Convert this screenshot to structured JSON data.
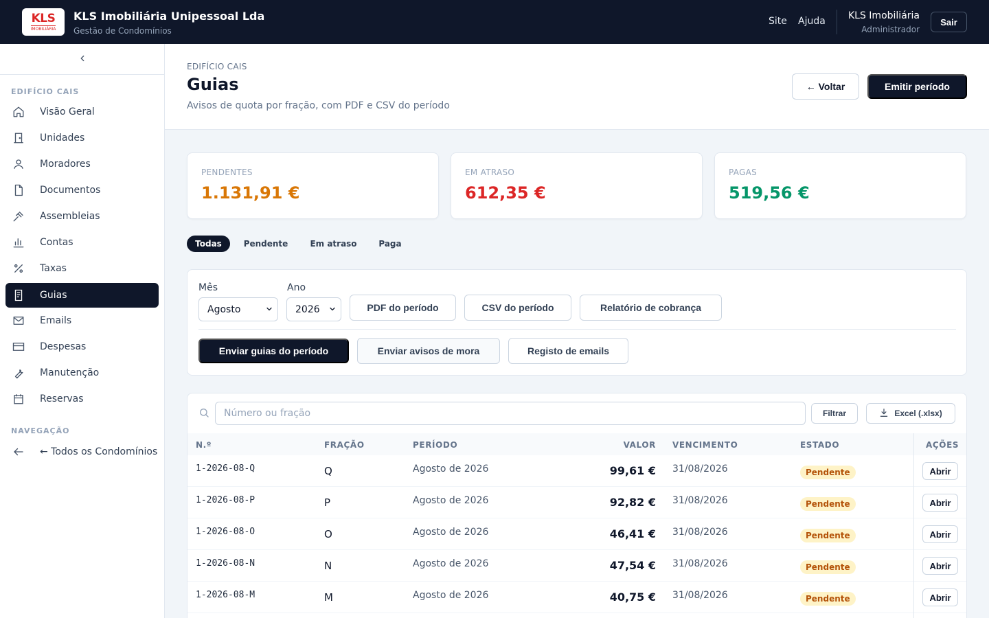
{
  "topbar": {
    "logo_text": "KLS",
    "logo_sub": "IMOBILIÁRIA",
    "company": "KLS Imobiliária Unipessoal Lda",
    "product": "Gestão de Condomínios",
    "nav": {
      "site": "Site",
      "help": "Ajuda"
    },
    "user_name": "KLS Imobiliária",
    "user_role": "Administrador",
    "logout": "Sair"
  },
  "sidebar": {
    "section_building": "EDIFÍCIO CAIS",
    "items": [
      {
        "label": "Visão Geral",
        "icon": "home-icon"
      },
      {
        "label": "Unidades",
        "icon": "door-icon"
      },
      {
        "label": "Moradores",
        "icon": "user-icon"
      },
      {
        "label": "Documentos",
        "icon": "document-icon"
      },
      {
        "label": "Assembleias",
        "icon": "gavel-icon"
      },
      {
        "label": "Contas",
        "icon": "bar-chart-icon"
      },
      {
        "label": "Taxas",
        "icon": "percent-icon"
      },
      {
        "label": "Guias",
        "icon": "receipt-icon",
        "active": true
      },
      {
        "label": "Emails",
        "icon": "mail-icon"
      },
      {
        "label": "Despesas",
        "icon": "credit-card-icon"
      },
      {
        "label": "Manutenção",
        "icon": "wrench-icon"
      },
      {
        "label": "Reservas",
        "icon": "calendar-icon"
      }
    ],
    "section_nav": "NAVEGAÇÃO",
    "back_all": "← Todos os Condomínios"
  },
  "header": {
    "breadcrumb": "EDIFÍCIO CAIS",
    "title": "Guias",
    "subtitle": "Avisos de quota por fração, com PDF e CSV do período",
    "back_button": "← Voltar",
    "emit_button": "Emitir período"
  },
  "summary": {
    "pending_label": "PENDENTES",
    "pending_value": "1.131,91 €",
    "overdue_label": "EM ATRASO",
    "overdue_value": "612,35 €",
    "paid_label": "PAGAS",
    "paid_value": "519,56 €",
    "colors": {
      "pending": "#d97706",
      "overdue": "#dc2626",
      "paid": "#059669"
    }
  },
  "tabs": [
    "Todas",
    "Pendente",
    "Em atraso",
    "Paga"
  ],
  "filters": {
    "month_label": "Mês",
    "month_value": "Agosto",
    "year_label": "Ano",
    "year_value": "2026",
    "pdf_button": "PDF do período",
    "csv_button": "CSV do período",
    "report_button": "Relatório de cobrança",
    "send_button": "Enviar guias do período",
    "late_notice_button": "Enviar avisos de mora",
    "email_log_button": "Registo de emails"
  },
  "table": {
    "search_placeholder": "Número ou fração",
    "filter_button": "Filtrar",
    "excel_button": "Excel (.xlsx)",
    "headers": [
      "N.º",
      "FRAÇÃO",
      "PERÍODO",
      "VALOR",
      "VENCIMENTO",
      "ESTADO",
      "AÇÕES"
    ],
    "rows": [
      {
        "num": "1-2026-08-Q",
        "frac": "Q",
        "per": "Agosto de 2026",
        "valor": "99,61 €",
        "venc": "31/08/2026",
        "estado": "Pendente",
        "action": "Abrir"
      },
      {
        "num": "1-2026-08-P",
        "frac": "P",
        "per": "Agosto de 2026",
        "valor": "92,82 €",
        "venc": "31/08/2026",
        "estado": "Pendente",
        "action": "Abrir"
      },
      {
        "num": "1-2026-08-O",
        "frac": "O",
        "per": "Agosto de 2026",
        "valor": "46,41 €",
        "venc": "31/08/2026",
        "estado": "Pendente",
        "action": "Abrir"
      },
      {
        "num": "1-2026-08-N",
        "frac": "N",
        "per": "Agosto de 2026",
        "valor": "47,54 €",
        "venc": "31/08/2026",
        "estado": "Pendente",
        "action": "Abrir"
      },
      {
        "num": "1-2026-08-M",
        "frac": "M",
        "per": "Agosto de 2026",
        "valor": "40,75 €",
        "venc": "31/08/2026",
        "estado": "Pendente",
        "action": "Abrir"
      }
    ]
  }
}
